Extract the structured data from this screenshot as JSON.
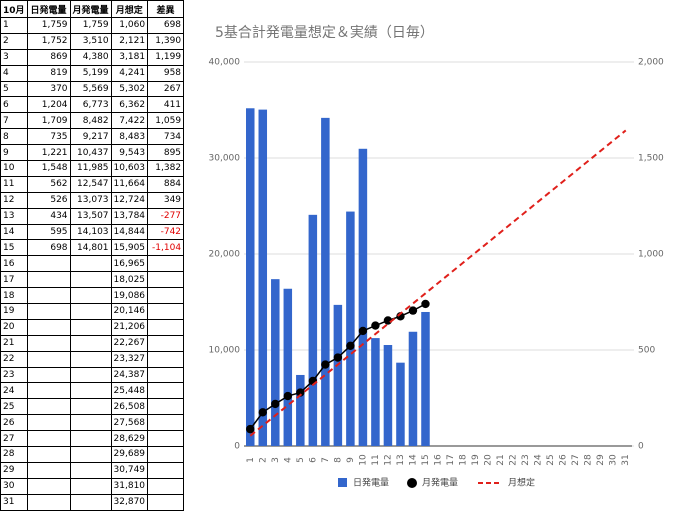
{
  "table": {
    "header": [
      "10月",
      "日発電量",
      "月発電量",
      "月想定",
      "差異"
    ],
    "rows": [
      [
        "1",
        "1,759",
        "1,759",
        "1,060",
        "698"
      ],
      [
        "2",
        "1,752",
        "3,510",
        "2,121",
        "1,390"
      ],
      [
        "3",
        "869",
        "4,380",
        "3,181",
        "1,199"
      ],
      [
        "4",
        "819",
        "5,199",
        "4,241",
        "958"
      ],
      [
        "5",
        "370",
        "5,569",
        "5,302",
        "267"
      ],
      [
        "6",
        "1,204",
        "6,773",
        "6,362",
        "411"
      ],
      [
        "7",
        "1,709",
        "8,482",
        "7,422",
        "1,059"
      ],
      [
        "8",
        "735",
        "9,217",
        "8,483",
        "734"
      ],
      [
        "9",
        "1,221",
        "10,437",
        "9,543",
        "895"
      ],
      [
        "10",
        "1,548",
        "11,985",
        "10,603",
        "1,382"
      ],
      [
        "11",
        "562",
        "12,547",
        "11,664",
        "884"
      ],
      [
        "12",
        "526",
        "13,073",
        "12,724",
        "349"
      ],
      [
        "13",
        "434",
        "13,507",
        "13,784",
        "-277"
      ],
      [
        "14",
        "595",
        "14,103",
        "14,844",
        "-742"
      ],
      [
        "15",
        "698",
        "14,801",
        "15,905",
        "-1,104"
      ],
      [
        "16",
        null,
        null,
        "16,965",
        null
      ],
      [
        "17",
        null,
        null,
        "18,025",
        null
      ],
      [
        "18",
        null,
        null,
        "19,086",
        null
      ],
      [
        "19",
        null,
        null,
        "20,146",
        null
      ],
      [
        "20",
        null,
        null,
        "21,206",
        null
      ],
      [
        "21",
        null,
        null,
        "22,267",
        null
      ],
      [
        "22",
        null,
        null,
        "23,327",
        null
      ],
      [
        "23",
        null,
        null,
        "24,387",
        null
      ],
      [
        "24",
        null,
        null,
        "25,448",
        null
      ],
      [
        "25",
        null,
        null,
        "26,508",
        null
      ],
      [
        "26",
        null,
        null,
        "27,568",
        null
      ],
      [
        "27",
        null,
        null,
        "28,629",
        null
      ],
      [
        "28",
        null,
        null,
        "29,689",
        null
      ],
      [
        "29",
        null,
        null,
        "30,749",
        null
      ],
      [
        "30",
        null,
        null,
        "31,810",
        null
      ],
      [
        "31",
        null,
        null,
        "32,870",
        null
      ]
    ]
  },
  "chart_data": {
    "type": "combo",
    "title": "5基合計発電量想定＆実績（日毎）",
    "categories": [
      "1",
      "2",
      "3",
      "4",
      "5",
      "6",
      "7",
      "8",
      "9",
      "10",
      "11",
      "12",
      "13",
      "14",
      "15",
      "16",
      "17",
      "18",
      "19",
      "20",
      "21",
      "22",
      "23",
      "24",
      "25",
      "26",
      "27",
      "28",
      "29",
      "30",
      "31"
    ],
    "ylim": [
      0,
      40000
    ],
    "yticks": [
      0,
      {
        "value": 10000,
        "label": "10,000"
      },
      {
        "value": 20000,
        "label": "20,000"
      },
      {
        "value": 30000,
        "label": "30,000"
      },
      {
        "value": 40000,
        "label": "40,000"
      }
    ],
    "y2lim": [
      0,
      2000
    ],
    "y2ticks": [
      0,
      500,
      {
        "value": 1000,
        "label": "1,000"
      },
      {
        "value": 1500,
        "label": "1,500"
      },
      {
        "value": 2000,
        "label": "2,000"
      }
    ],
    "grid": true,
    "legend": "bottom",
    "series": [
      {
        "name": "日発電量",
        "type": "bar",
        "axis": "y2",
        "color": "#3366cc",
        "values": [
          1759,
          1752,
          869,
          819,
          370,
          1204,
          1709,
          735,
          1221,
          1548,
          562,
          526,
          434,
          595,
          698,
          null,
          null,
          null,
          null,
          null,
          null,
          null,
          null,
          null,
          null,
          null,
          null,
          null,
          null,
          null,
          null
        ]
      },
      {
        "name": "月発電量",
        "type": "line",
        "color": "#000000",
        "markers": true,
        "values": [
          1759,
          3510,
          4380,
          5199,
          5569,
          6773,
          8482,
          9217,
          10437,
          11985,
          12547,
          13073,
          13507,
          14103,
          14801,
          null,
          null,
          null,
          null,
          null,
          null,
          null,
          null,
          null,
          null,
          null,
          null,
          null,
          null,
          null,
          null
        ]
      },
      {
        "name": "月想定",
        "type": "line",
        "color": "#e0201b",
        "dashed": true,
        "values": [
          1060,
          2121,
          3181,
          4241,
          5302,
          6362,
          7422,
          8483,
          9543,
          10603,
          11664,
          12724,
          13784,
          14844,
          15905,
          16965,
          18025,
          19086,
          20146,
          21206,
          22267,
          23327,
          24387,
          25448,
          26508,
          27568,
          28629,
          29689,
          30749,
          31810,
          32870
        ]
      }
    ]
  }
}
